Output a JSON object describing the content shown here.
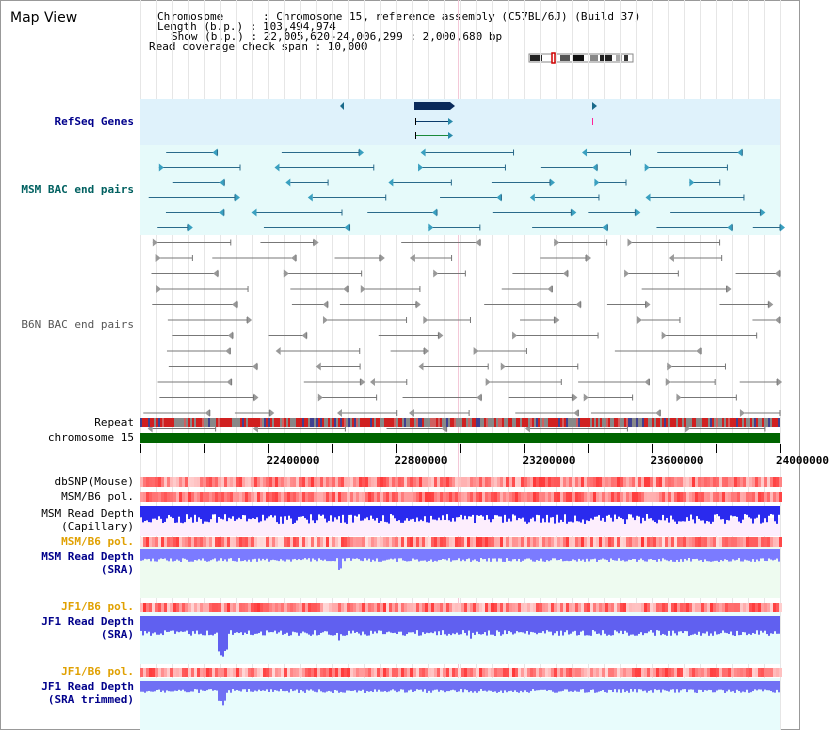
{
  "title": "Map View",
  "info": {
    "line1": "Chromosome      : Chromosome 15, reference assembly (C57BL/6J) (Build 37)",
    "line2": "Length (b.p.) : 103,494,974",
    "line3": "Show (b.p.) : 22,005,620-24,006,299 : 2,000,680 bp",
    "line4": "Read coverage check span : 10,000"
  },
  "tracks": {
    "refseq": "RefSeq Genes",
    "msm_bac": "MSM BAC end pairs",
    "b6n_bac": "B6N BAC end pairs",
    "repeat": "Repeat",
    "chromosome": "chromosome 15",
    "dbsnp": "dbSNP(Mouse)",
    "msm_b6_pol_1": "MSM/B6 pol.",
    "msm_read_depth_cap_1": "MSM Read Depth",
    "msm_read_depth_cap_2": "(Capillary)",
    "msm_b6_pol_2": "MSM/B6 pol.",
    "msm_read_depth_sra_1": "MSM Read Depth",
    "msm_read_depth_sra_2": "(SRA)",
    "jf1_b6_pol_1": "JF1/B6 pol.",
    "jf1_read_depth_sra_1": "JF1 Read Depth",
    "jf1_read_depth_sra_2": "(SRA)",
    "jf1_b6_pol_2": "JF1/B6 pol.",
    "jf1_read_depth_trim_1": "JF1 Read Depth",
    "jf1_read_depth_trim_2": "(SRA trimmed)"
  },
  "axis": {
    "ticks": [
      "22400000",
      "22800000",
      "23200000",
      "23600000",
      "24000000"
    ]
  },
  "colors": {
    "track_label_blue": "#00008b",
    "track_label_teal": "#006060",
    "track_label_orange": "#e0a000",
    "refseq_bg": "#dff2fb",
    "msm_bac_bg": "#e6fafa",
    "chromosome_bar": "#006400",
    "depth_blue": "#0000ff",
    "depth_light_blue": "#7b7bff",
    "pol_red": "#ff0000"
  },
  "icons": {
    "chromosome_ideogram": "chromosome-ideogram-icon"
  }
}
